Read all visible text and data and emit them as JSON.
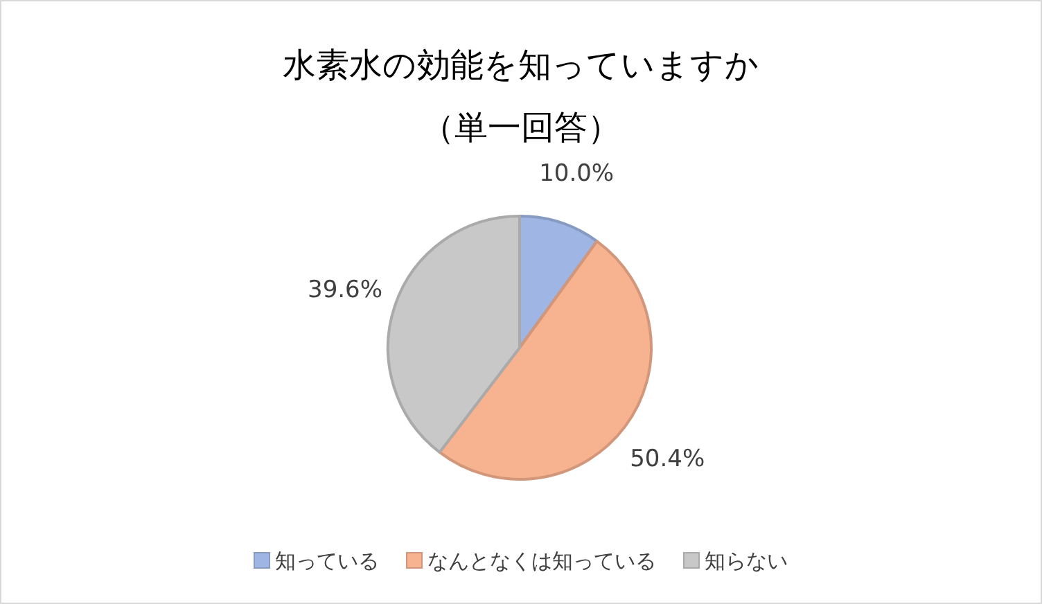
{
  "chart_data": {
    "type": "pie",
    "title": "水素水の効能を知っていますか",
    "subtitle": "（単一回答）",
    "categories": [
      "知っている",
      "なんとなくは知っている",
      "知らない"
    ],
    "values": [
      10.0,
      50.4,
      39.6
    ],
    "colors": [
      "#9fb5e3",
      "#f7b28f",
      "#c8c8c8"
    ],
    "value_labels": [
      "10.0%",
      "50.4%",
      "39.6%"
    ],
    "legend": "bottom"
  }
}
